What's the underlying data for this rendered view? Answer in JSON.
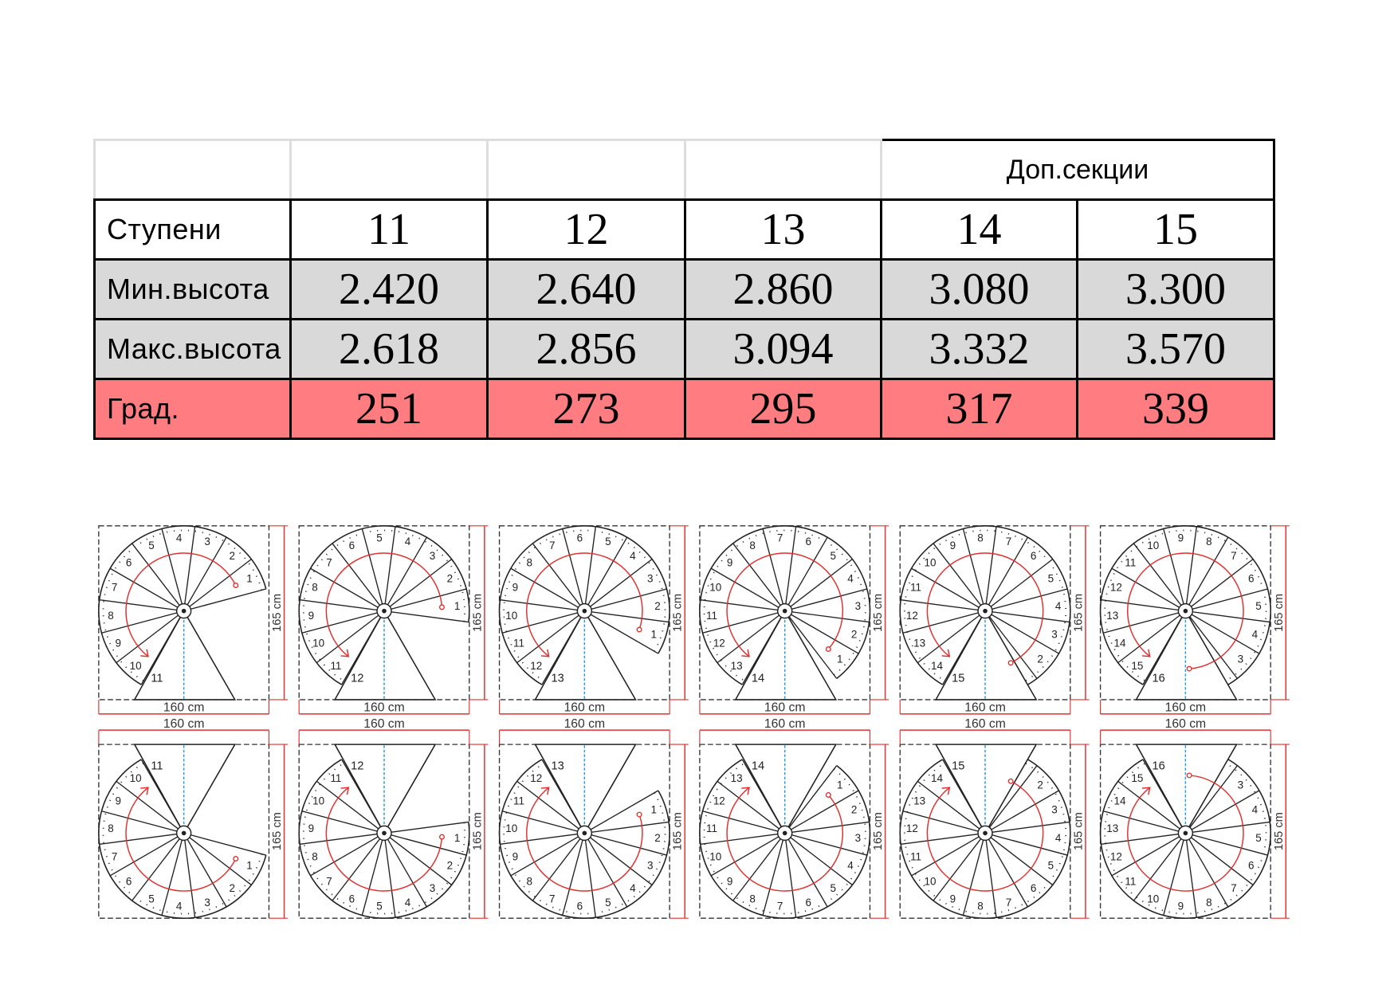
{
  "table": {
    "group_header": "Доп.секции",
    "rows": [
      {
        "label": "Ступени",
        "values": [
          "11",
          "12",
          "13",
          "14",
          "15"
        ]
      },
      {
        "label": "Мин.высота",
        "values": [
          "2.420",
          "2.640",
          "2.860",
          "3.080",
          "3.300"
        ]
      },
      {
        "label": "Макс.высота",
        "values": [
          "2.618",
          "2.856",
          "3.094",
          "3.332",
          "3.570"
        ]
      },
      {
        "label": "Град.",
        "values": [
          "251",
          "273",
          "295",
          "317",
          "339"
        ]
      }
    ],
    "colors": {
      "gray_row": "#d9d9d9",
      "red_row": "#ff7c80",
      "border": "#000000"
    }
  },
  "diagrams": {
    "width_label": "160 cm",
    "height_label": "165 cm",
    "step_counts": [
      11,
      12,
      13,
      14,
      15,
      16
    ],
    "rows": [
      "counterclockwise",
      "clockwise"
    ],
    "colors": {
      "outline": "#222222",
      "arrow": "#e03030",
      "axis": "#2a9ad8",
      "dimension": "#e03030"
    }
  }
}
